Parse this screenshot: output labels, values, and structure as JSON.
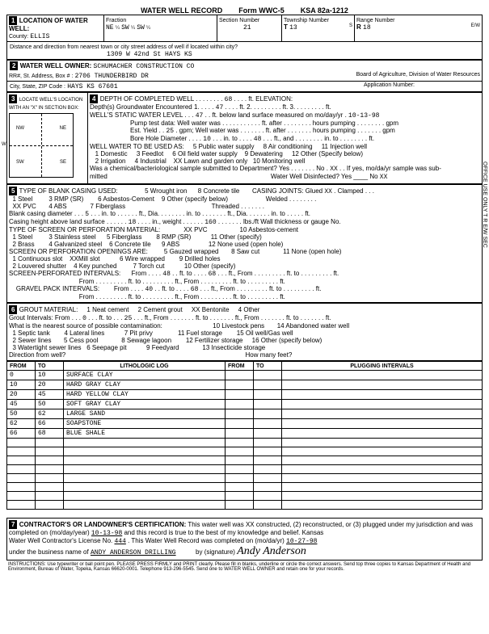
{
  "header": {
    "title": "WATER WELL RECORD",
    "form": "Form WWC-5",
    "ksa": "KSA 82a-1212"
  },
  "loc": {
    "section_title": "LOCATION OF WATER WELL:",
    "county": "ELLIS",
    "fraction": "Fraction",
    "f1": "NE",
    "f1s": "¼",
    "f2": "SW",
    "f2s": "¼",
    "f3": "SW",
    "f3s": "¼",
    "sec_label": "Section Number",
    "sec": "21",
    "twp_label": "Township Number",
    "twp": "13",
    "twp_s": "S",
    "rng_label": "Range Number",
    "rng": "18",
    "rng_e": "E/W",
    "dist_label": "Distance and direction from nearest town or city street address of well if located within city?",
    "addr": "1309 W 42nd St    HAYS KS"
  },
  "owner": {
    "section_title": "WATER WELL OWNER:",
    "name": "SCHUMACHER CONSTRUCTION CO",
    "addr_label": "RR#, St. Address, Box # :",
    "addr": "2706 THUNDERBIRD DR",
    "city_label": "City, State, ZIP Code :",
    "city": "HAYS KS  67601",
    "board": "Board of Agriculture, Division of Water Resources",
    "appno": "Application Number:"
  },
  "locate": {
    "title": "LOCATE WELL'S LOCATION WITH AN \"X\" IN SECTION BOX:",
    "nw": "NW",
    "ne": "NE",
    "sw": "SW",
    "se": "SE",
    "w": "W",
    "mile": "1 Mile"
  },
  "depth": {
    "title": "DEPTH OF COMPLETED WELL",
    "depth_val": "68",
    "depth_unit": "ft. ELEVATION:",
    "gw_label": "Depth(s) Groundwater Encountered  1.",
    "gw1": "47",
    "gw2": "ft.  2.",
    "gw3": "ft.  3.",
    "gw4": "ft.",
    "swl_label": "WELL'S STATIC WATER LEVEL",
    "swl": "47",
    "swl_unit": "ft. below land surface measured on mo/day/yr",
    "swl_date": "10-13-98",
    "pump_label": "Pump test data:  Well water was",
    "pump2": "ft. after",
    "pump3": "hours pumping",
    "pump4": "gpm",
    "est_label": "Est. Yield",
    "est": "25",
    "est2": "gpm;  Well water was",
    "est3": "ft. after",
    "est4": "hours pumping",
    "est5": "gpm",
    "bore_label": "Bore Hole Diameter",
    "bore1": "10",
    "bore2": "in. to",
    "bore3": "48",
    "bore4": "ft., and",
    "bore5": "in. to",
    "bore6": "ft.",
    "use_title": "WELL WATER TO BE USED AS:",
    "use5": "5 Public water supply",
    "use8": "8 Air conditioning",
    "use11": "11 Injection well",
    "use1": "1 Domestic",
    "use3": "3 Feedlot",
    "use6": "6 Oil field water supply",
    "use9": "9 Dewatering",
    "use12": "12 Other (Specify below)",
    "use2": "2 Irrigation",
    "use4": "4 Industrial",
    "use7": "XX Lawn and garden only",
    "use10": "10 Monitoring well",
    "bacteria": "Was a chemical/bacteriological sample submitted to Department?  Yes",
    "bact_no": "No",
    "bact_xx": "XX",
    "bact_end": "If yes, mo/da/yr sample was sub-",
    "mitted": "mitted",
    "disinfect": "Water Well Disinfected?  Yes",
    "dis_no": "No",
    "dis_xx": "XX"
  },
  "casing": {
    "title": "TYPE OF BLANK CASING USED:",
    "c5": "5 Wrought iron",
    "c8": "8 Concrete tile",
    "joints": "CASING JOINTS:  Glued",
    "jx": "XX",
    "jclamp": "Clamped",
    "c1": "1 Steel",
    "c3": "3 RMP (SR)",
    "c6": "6 Asbestos-Cement",
    "c9": "9 Other (specify below)",
    "welded": "Welded",
    "c2": "XX PVC",
    "c4": "4 ABS",
    "c7": "7 Fiberglass",
    "threaded": "Threaded",
    "bcd_label": "Blank casing diameter",
    "bcd1": "5",
    "bcd2": "in. to",
    "bcd3": "ft., Dia.",
    "bcd4": "in. to",
    "bcd5": "ft., Dia.",
    "bcd6": "in. to",
    "bcd7": "ft.",
    "chs_label": "Casing height above land surface",
    "chs": "18",
    "chs2": "in., weight",
    "chs3": "160",
    "chs4": "lbs./ft  Wall thickness or gauge No.",
    "screen_title": "TYPE OF SCREEN OR PERFORATION MATERIAL:",
    "s7": "XX PVC",
    "s10": "10 Asbestos-cement",
    "s1": "1 Steel",
    "s3": "3 Stainless steel",
    "s5": "5 Fiberglass",
    "s8": "8 RMP (SR)",
    "s11": "11 Other (specify)",
    "s2": "2 Brass",
    "s4": "4 Galvanized steel",
    "s6": "6 Concrete tile",
    "s9": "9 ABS",
    "s12": "12 None used (open hole)",
    "open_title": "SCREEN OR PERFORATION OPENINGS ARE:",
    "o5": "5 Gauzed wrapped",
    "o8": "8 Saw cut",
    "o11": "11 None (open hole)",
    "o1": "1 Continuous slot",
    "o3": "XXMill slot",
    "o6": "6 Wire wrapped",
    "o9": "9 Drilled holes",
    "o2": "2 Louvered shutter",
    "o4": "4 Key punched",
    "o7": "7 Torch cut",
    "o10": "10 Other (specify)",
    "spi_label": "SCREEN-PERFORATED INTERVALS:",
    "spi_from": "From",
    "spi1": "48",
    "spi_to": "ft. to",
    "spi2": "68",
    "spi3": "ft., From",
    "spi4": "ft. to",
    "spi5": "ft.",
    "spi_from2": "From",
    "spi6": "ft. to",
    "spi7": "ft., From",
    "spi8": "ft. to",
    "spi9": "ft.",
    "gpi_label": "GRAVEL PACK INTERVALS:",
    "gpi1": "40",
    "gpi2": "68",
    "gpi_from2": "From",
    "gpi6": "ft. to",
    "gpi7": "ft., From",
    "gpi8": "ft. to",
    "gpi9": "ft."
  },
  "grout": {
    "title": "GROUT MATERIAL:",
    "g1": "1 Neat cement",
    "g2": "2 Cement grout",
    "g3": "XX Bentonite",
    "g4": "4 Other",
    "gi_label": "Grout Intervals:  From",
    "gi1": "0",
    "gi2": "ft. to",
    "gi3": "25",
    "gi4": "ft.,  From",
    "gi5": "ft. to",
    "gi6": "ft.,  From",
    "gi7": "ft. to",
    "gi8": "ft.",
    "contam": "What is the nearest source of possible contamination:",
    "p10": "10 Livestock pens",
    "p14": "14 Abandoned water well",
    "p1": "1 Septic tank",
    "p4": "4 Lateral lines",
    "p7": "7 Pit privy",
    "p11": "11 Fuel storage",
    "p15": "15 Oil well/Gas well",
    "p2": "2 Sewer lines",
    "p5": "5 Cess pool",
    "p8": "8 Sewage lagoon",
    "p12": "12 Fertilizer storage",
    "p16": "16 Other (specify below)",
    "p3": "3 Watertight sewer lines",
    "p6": "6 Seepage pit",
    "p9": "9 Feedyard",
    "p13": "13 Insecticide storage",
    "dir": "Direction from well?",
    "feet": "How many feet?"
  },
  "log": {
    "h1": "FROM",
    "h2": "TO",
    "h3": "LITHOLOGIC LOG",
    "h4": "FROM",
    "h5": "TO",
    "h6": "PLUGGING INTERVALS",
    "rows": [
      {
        "from": "0",
        "to": "10",
        "desc": "SURFACE CLAY"
      },
      {
        "from": "10",
        "to": "20",
        "desc": "HARD GRAY CLAY"
      },
      {
        "from": "20",
        "to": "45",
        "desc": "HARD YELLOW CLAY"
      },
      {
        "from": "45",
        "to": "50",
        "desc": "SOFT GRAY CLAY"
      },
      {
        "from": "50",
        "to": "62",
        "desc": "LARGE SAND"
      },
      {
        "from": "62",
        "to": "66",
        "desc": "SOAPSTONE"
      },
      {
        "from": "66",
        "to": "68",
        "desc": "BLUE SHALE"
      }
    ]
  },
  "cert": {
    "title": "CONTRACTOR'S OR LANDOWNER'S CERTIFICATION:",
    "text1": "This water well was XX constructed, (2) reconstructed, or (3) plugged under my jurisdiction and was",
    "text2": "completed on (mo/day/year)",
    "date1": "10-13-98",
    "text3": "and this record is true to the best of my knowledge and belief. Kansas",
    "text4": "Water Well Contractor's License No.",
    "lic": "444",
    "text5": "This Water Well Record was completed on (mo/da/yr)",
    "date2": "10-27-98",
    "text6": "under the business name of",
    "biz": "ANDY ANDERSON DRILLING",
    "text7": "by (signature)",
    "sig": "Andy Anderson"
  },
  "footer": "INSTRUCTIONS: Use typewriter or ball point pen. PLEASE PRESS FIRMLY and PRINT clearly. Please fill in blanks, underline or circle the correct answers. Send top three copies to Kansas Department of Health and Environment, Bureau of Water, Topeka, Kansas 66620-0001. Telephone 913-296-5545. Send one to WATER WELL OWNER and retain one for your records.",
  "side": "OFFICE USE ONLY        T        R        E/W        SEC"
}
